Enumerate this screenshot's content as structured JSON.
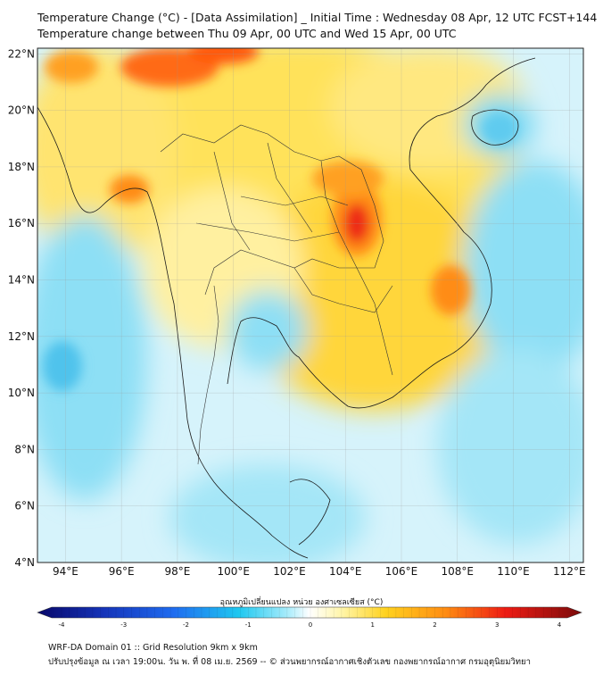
{
  "title": {
    "line1": "Temperature Change (°C) - [Data Assimilation] _ Initial Time : Wednesday 08 Apr, 12 UTC FCST+144",
    "line2": "Temperature change between Thu 09 Apr, 00 UTC and Wed 15 Apr, 00 UTC"
  },
  "map": {
    "lat_labels": [
      "22°N",
      "20°N",
      "18°N",
      "16°N",
      "14°N",
      "12°N",
      "10°N",
      "8°N",
      "6°N",
      "4°N"
    ],
    "lon_labels": [
      "94°E",
      "96°E",
      "98°E",
      "100°E",
      "102°E",
      "104°E",
      "106°E",
      "108°E",
      "110°E",
      "112°E"
    ],
    "lat_values": [
      22,
      20,
      18,
      16,
      14,
      12,
      10,
      8,
      6,
      4
    ],
    "lon_values": [
      94,
      96,
      98,
      100,
      102,
      104,
      106,
      108,
      110,
      112
    ],
    "extent": {
      "lon_min": 93.0,
      "lon_max": 112.5,
      "lat_min": 4.0,
      "lat_max": 22.2
    },
    "warm_spots": [
      {
        "lon": 104.3,
        "lat": 15.9,
        "value": 3.0
      },
      {
        "lon": 107.8,
        "lat": 13.6,
        "value": 2.6
      },
      {
        "lon": 97.8,
        "lat": 21.6,
        "value": 2.8
      },
      {
        "lon": 100.2,
        "lat": 22.1,
        "value": 2.6
      },
      {
        "lon": 96.0,
        "lat": 17.0,
        "value": 2.2
      },
      {
        "lon": 103.8,
        "lat": 17.5,
        "value": 2.0
      },
      {
        "lon": 102.5,
        "lat": 20.5,
        "value": 1.6
      },
      {
        "lon": 105.5,
        "lat": 12.5,
        "value": 1.6
      },
      {
        "lon": 93.5,
        "lat": 21.8,
        "value": 1.8
      },
      {
        "lon": 99.5,
        "lat": 17.5,
        "value": 1.8
      }
    ],
    "cool_spots": [
      {
        "lon": 93.8,
        "lat": 10.6,
        "value": -1.3
      },
      {
        "lon": 100.6,
        "lat": 12.2,
        "value": -1.0
      },
      {
        "lon": 111.0,
        "lat": 19.5,
        "value": -1.0
      },
      {
        "lon": 111.5,
        "lat": 15.0,
        "value": -1.0
      },
      {
        "lon": 109.5,
        "lat": 10.5,
        "value": -1.0
      },
      {
        "lon": 103.0,
        "lat": 6.5,
        "value": -1.0
      },
      {
        "lon": 110.0,
        "lat": 5.0,
        "value": -0.8
      },
      {
        "lon": 95.0,
        "lat": 5.5,
        "value": -0.8
      }
    ]
  },
  "colorbar": {
    "title": "อุณหภูมิเปลี่ยนแปลง หน่วย องศาเซลเซียส (°C)",
    "ticks": [
      "-4",
      "-3",
      "-2",
      "-1",
      "0",
      "1",
      "2",
      "3",
      "4"
    ],
    "tick_values": [
      -4,
      -3,
      -2,
      -1,
      0,
      1,
      2,
      3,
      4
    ],
    "colors": {
      "min": "#08086a",
      "cool": "#1fc8f0",
      "neutral": "#ffffff",
      "warm": "#ffd21f",
      "max": "#7a0a0a"
    }
  },
  "footer": {
    "line1": "WRF-DA Domain 01 :: Grid Resolution 9km x 9km",
    "line2": "ปรับปรุงข้อมูล ณ เวลา 19:00น. วัน พ. ที่ 08 เม.ย. 2569 -- © ส่วนพยากรณ์อากาศเชิงตัวเลข กองพยากรณ์อากาศ กรมอุตุนิยมวิทยา"
  }
}
